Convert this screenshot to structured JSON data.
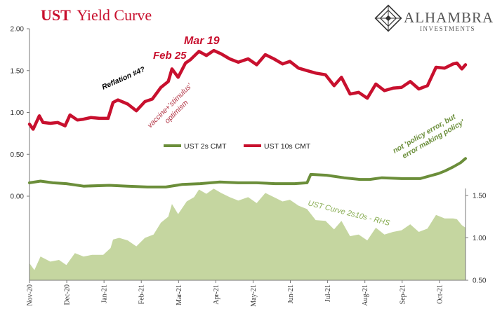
{
  "header": {
    "title_ust": "UST",
    "title_rest": "Yield Curve",
    "logo_name": "ALHAMBRA",
    "logo_sub": "INVESTMENTS",
    "logo_icon": "diamond-lattice-icon"
  },
  "colors": {
    "tens": "#c8102e",
    "twos": "#6b8e3a",
    "curve_fill": "#c5d6a0",
    "curve_label": "#8aae55"
  },
  "chart_data": {
    "type": "line",
    "x_ticks": [
      "Nov-20",
      "Dec-20",
      "Jan-21",
      "Feb-21",
      "Mar-21",
      "Apr-21",
      "May-21",
      "Jun-21",
      "Jul-21",
      "Aug-21",
      "Sep-21",
      "Oct-21"
    ],
    "x_range": [
      "2020-11-01",
      "2021-10-22"
    ],
    "left_axis": {
      "ticks": [
        "2.00",
        "1.50",
        "1.00",
        "0.50",
        "0.00"
      ],
      "range": [
        0.0,
        2.0
      ]
    },
    "right_axis": {
      "ticks": [
        "1.50",
        "1.00",
        "0.50"
      ],
      "range": [
        0.5,
        1.6
      ]
    },
    "legend": [
      {
        "name": "UST 2s CMT",
        "color_key": "twos"
      },
      {
        "name": "UST 10s CMT",
        "color_key": "tens"
      }
    ],
    "series": [
      {
        "name": "UST 10s CMT",
        "axis": "left",
        "points": [
          [
            "2020-11-01",
            0.86
          ],
          [
            "2020-11-04",
            0.8
          ],
          [
            "2020-11-09",
            0.96
          ],
          [
            "2020-11-12",
            0.88
          ],
          [
            "2020-11-18",
            0.87
          ],
          [
            "2020-11-24",
            0.88
          ],
          [
            "2020-11-30",
            0.84
          ],
          [
            "2020-12-04",
            0.97
          ],
          [
            "2020-12-10",
            0.91
          ],
          [
            "2020-12-15",
            0.92
          ],
          [
            "2020-12-21",
            0.94
          ],
          [
            "2020-12-28",
            0.93
          ],
          [
            "2021-01-04",
            0.93
          ],
          [
            "2021-01-08",
            1.12
          ],
          [
            "2021-01-12",
            1.15
          ],
          [
            "2021-01-20",
            1.1
          ],
          [
            "2021-01-27",
            1.02
          ],
          [
            "2021-02-03",
            1.13
          ],
          [
            "2021-02-09",
            1.16
          ],
          [
            "2021-02-16",
            1.3
          ],
          [
            "2021-02-22",
            1.37
          ],
          [
            "2021-02-25",
            1.52
          ],
          [
            "2021-03-02",
            1.42
          ],
          [
            "2021-03-08",
            1.59
          ],
          [
            "2021-03-12",
            1.63
          ],
          [
            "2021-03-19",
            1.73
          ],
          [
            "2021-03-25",
            1.68
          ],
          [
            "2021-03-31",
            1.74
          ],
          [
            "2021-04-06",
            1.7
          ],
          [
            "2021-04-13",
            1.64
          ],
          [
            "2021-04-20",
            1.6
          ],
          [
            "2021-04-28",
            1.64
          ],
          [
            "2021-05-05",
            1.57
          ],
          [
            "2021-05-12",
            1.69
          ],
          [
            "2021-05-19",
            1.64
          ],
          [
            "2021-05-26",
            1.58
          ],
          [
            "2021-06-01",
            1.61
          ],
          [
            "2021-06-08",
            1.53
          ],
          [
            "2021-06-15",
            1.5
          ],
          [
            "2021-06-22",
            1.47
          ],
          [
            "2021-06-30",
            1.45
          ],
          [
            "2021-07-07",
            1.32
          ],
          [
            "2021-07-13",
            1.42
          ],
          [
            "2021-07-20",
            1.22
          ],
          [
            "2021-07-27",
            1.24
          ],
          [
            "2021-08-03",
            1.17
          ],
          [
            "2021-08-10",
            1.34
          ],
          [
            "2021-08-17",
            1.26
          ],
          [
            "2021-08-24",
            1.29
          ],
          [
            "2021-08-31",
            1.3
          ],
          [
            "2021-09-07",
            1.37
          ],
          [
            "2021-09-14",
            1.28
          ],
          [
            "2021-09-21",
            1.32
          ],
          [
            "2021-09-28",
            1.54
          ],
          [
            "2021-10-05",
            1.53
          ],
          [
            "2021-10-12",
            1.58
          ],
          [
            "2021-10-15",
            1.59
          ],
          [
            "2021-10-19",
            1.52
          ],
          [
            "2021-10-22",
            1.57
          ]
        ]
      },
      {
        "name": "UST 2s CMT",
        "axis": "left",
        "points": [
          [
            "2020-11-01",
            0.16
          ],
          [
            "2020-11-10",
            0.18
          ],
          [
            "2020-11-20",
            0.16
          ],
          [
            "2020-12-01",
            0.15
          ],
          [
            "2020-12-15",
            0.12
          ],
          [
            "2021-01-05",
            0.13
          ],
          [
            "2021-01-20",
            0.12
          ],
          [
            "2021-02-05",
            0.11
          ],
          [
            "2021-02-20",
            0.11
          ],
          [
            "2021-03-05",
            0.14
          ],
          [
            "2021-03-20",
            0.15
          ],
          [
            "2021-04-05",
            0.17
          ],
          [
            "2021-04-20",
            0.16
          ],
          [
            "2021-05-05",
            0.16
          ],
          [
            "2021-05-20",
            0.15
          ],
          [
            "2021-06-05",
            0.15
          ],
          [
            "2021-06-15",
            0.16
          ],
          [
            "2021-06-18",
            0.26
          ],
          [
            "2021-07-01",
            0.25
          ],
          [
            "2021-07-15",
            0.22
          ],
          [
            "2021-07-28",
            0.2
          ],
          [
            "2021-08-05",
            0.2
          ],
          [
            "2021-08-15",
            0.22
          ],
          [
            "2021-08-31",
            0.21
          ],
          [
            "2021-09-15",
            0.21
          ],
          [
            "2021-09-30",
            0.27
          ],
          [
            "2021-10-05",
            0.3
          ],
          [
            "2021-10-12",
            0.35
          ],
          [
            "2021-10-18",
            0.4
          ],
          [
            "2021-10-22",
            0.45
          ]
        ]
      },
      {
        "name": "UST Curve 2s10s - RHS",
        "axis": "right",
        "type": "area",
        "points": [
          [
            "2020-11-01",
            0.7
          ],
          [
            "2020-11-05",
            0.62
          ],
          [
            "2020-11-10",
            0.78
          ],
          [
            "2020-11-18",
            0.72
          ],
          [
            "2020-11-25",
            0.74
          ],
          [
            "2020-12-01",
            0.68
          ],
          [
            "2020-12-08",
            0.82
          ],
          [
            "2020-12-15",
            0.78
          ],
          [
            "2020-12-22",
            0.8
          ],
          [
            "2020-12-31",
            0.8
          ],
          [
            "2021-01-06",
            0.88
          ],
          [
            "2021-01-08",
            0.98
          ],
          [
            "2021-01-13",
            1.0
          ],
          [
            "2021-01-20",
            0.97
          ],
          [
            "2021-01-27",
            0.9
          ],
          [
            "2021-02-03",
            1.0
          ],
          [
            "2021-02-10",
            1.04
          ],
          [
            "2021-02-16",
            1.18
          ],
          [
            "2021-02-22",
            1.25
          ],
          [
            "2021-02-25",
            1.4
          ],
          [
            "2021-03-02",
            1.28
          ],
          [
            "2021-03-09",
            1.43
          ],
          [
            "2021-03-15",
            1.48
          ],
          [
            "2021-03-19",
            1.57
          ],
          [
            "2021-03-25",
            1.52
          ],
          [
            "2021-03-31",
            1.58
          ],
          [
            "2021-04-06",
            1.53
          ],
          [
            "2021-04-13",
            1.48
          ],
          [
            "2021-04-20",
            1.44
          ],
          [
            "2021-04-28",
            1.48
          ],
          [
            "2021-05-05",
            1.41
          ],
          [
            "2021-05-12",
            1.53
          ],
          [
            "2021-05-19",
            1.48
          ],
          [
            "2021-05-26",
            1.43
          ],
          [
            "2021-06-01",
            1.45
          ],
          [
            "2021-06-08",
            1.38
          ],
          [
            "2021-06-15",
            1.34
          ],
          [
            "2021-06-22",
            1.21
          ],
          [
            "2021-06-30",
            1.2
          ],
          [
            "2021-07-07",
            1.1
          ],
          [
            "2021-07-13",
            1.2
          ],
          [
            "2021-07-20",
            1.02
          ],
          [
            "2021-07-27",
            1.04
          ],
          [
            "2021-08-03",
            0.97
          ],
          [
            "2021-08-10",
            1.12
          ],
          [
            "2021-08-17",
            1.04
          ],
          [
            "2021-08-24",
            1.07
          ],
          [
            "2021-08-31",
            1.09
          ],
          [
            "2021-09-07",
            1.16
          ],
          [
            "2021-09-14",
            1.07
          ],
          [
            "2021-09-21",
            1.11
          ],
          [
            "2021-09-28",
            1.27
          ],
          [
            "2021-10-05",
            1.23
          ],
          [
            "2021-10-12",
            1.23
          ],
          [
            "2021-10-15",
            1.22
          ],
          [
            "2021-10-19",
            1.15
          ],
          [
            "2021-10-22",
            1.12
          ]
        ]
      }
    ],
    "annotations": [
      {
        "text": "Mar 19",
        "color_key": "tens",
        "date": "2021-03-19",
        "value": 1.73
      },
      {
        "text": "Feb 25",
        "color_key": "tens",
        "date": "2021-02-25",
        "value": 1.52
      },
      {
        "text": "Reflation #4?",
        "color": "#000000"
      },
      {
        "text_lines": [
          "vaccine+'stimulus'",
          "optimism"
        ],
        "color": "#b03040"
      },
      {
        "text_lines": [
          "not 'policy error, but",
          "error making policy'"
        ],
        "color": "#6b8e3a"
      },
      {
        "text": "UST Curve 2s10s - RHS",
        "color_key": "curve_label"
      }
    ]
  }
}
